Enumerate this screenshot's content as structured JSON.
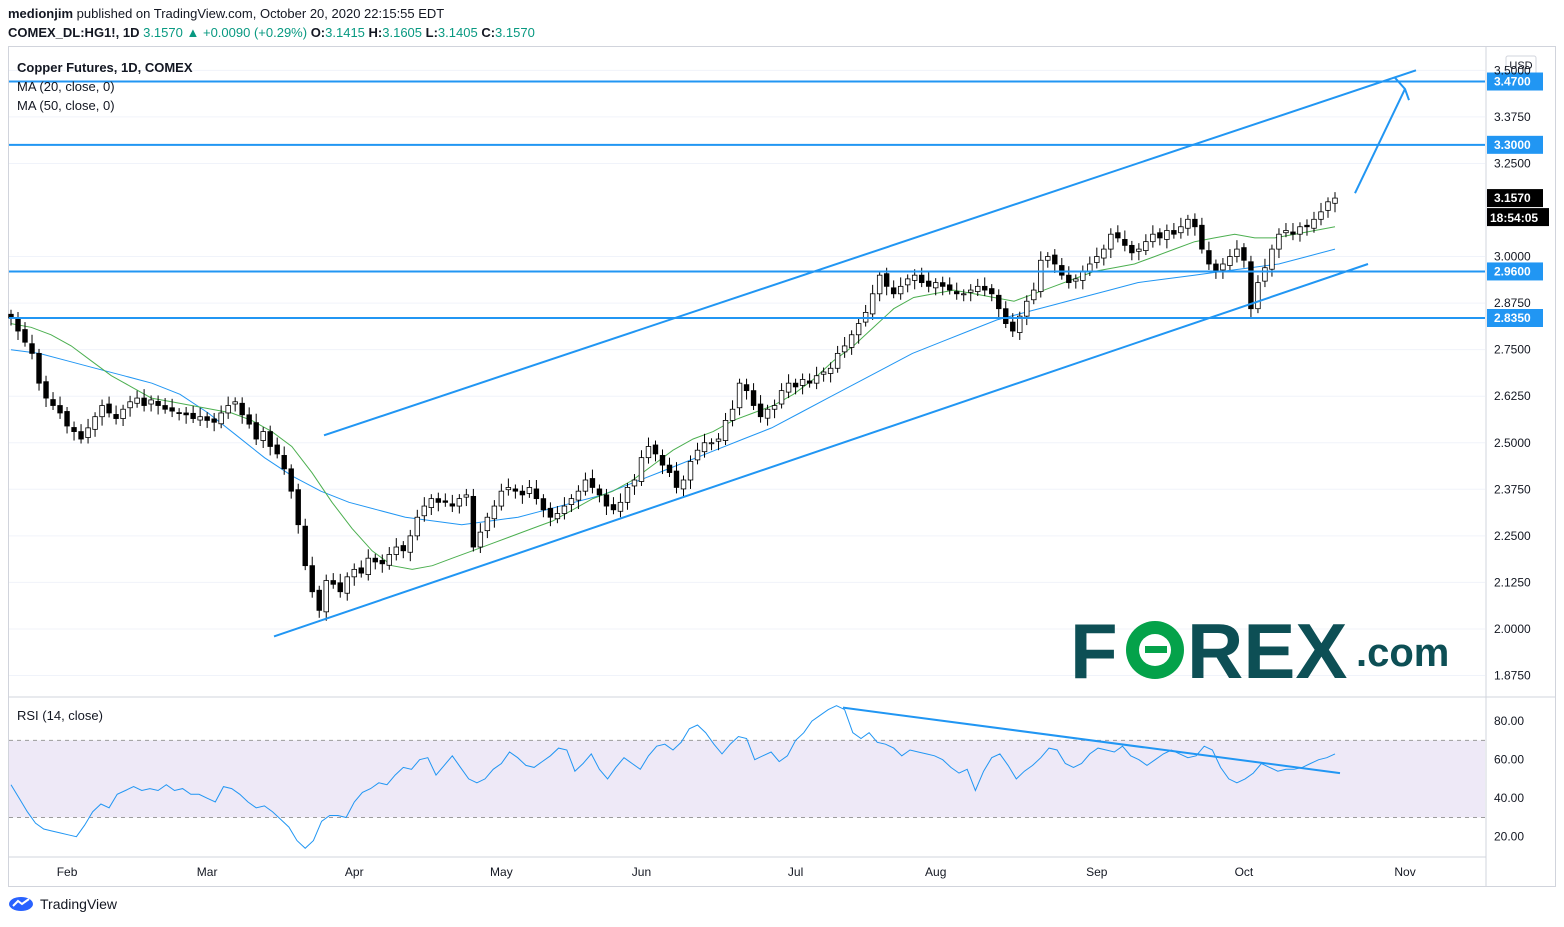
{
  "header": {
    "author": "medionjim",
    "published_text": "published on TradingView.com, October 20, 2020 22:15:55 EDT",
    "symbol": "COMEX_DL:HG1!, 1D",
    "last": "3.1570",
    "change_arrow": "▲",
    "change": "+0.0090 (+0.29%)",
    "o_label": "O:",
    "o": "3.1415",
    "h_label": "H:",
    "h": "3.1605",
    "l_label": "L:",
    "l": "3.1405",
    "c_label": "C:",
    "c": "3.1570"
  },
  "legend": {
    "title": "Copper Futures, 1D, COMEX",
    "ma20": "MA (20, close, 0)",
    "ma50": "MA (50, close, 0)",
    "rsi": "RSI (14, close)"
  },
  "currency": "USD",
  "price_ticks": [
    "3.5000",
    "3.3750",
    "3.2500",
    "3.0000",
    "2.8750",
    "2.7500",
    "2.6250",
    "2.5000",
    "2.3750",
    "2.2500",
    "2.1250",
    "2.0000",
    "1.8750"
  ],
  "level_labels": [
    "3.4700",
    "3.3000",
    "2.9600",
    "2.8350"
  ],
  "current_price_label": "3.1570",
  "countdown": "18:54:05",
  "rsi_ticks": [
    "80.00",
    "60.00",
    "40.00",
    "20.00"
  ],
  "x_labels": [
    "Feb",
    "Mar",
    "Apr",
    "May",
    "Jun",
    "Jul",
    "Aug",
    "Sep",
    "Oct",
    "Nov"
  ],
  "watermark": {
    "text_a": "F",
    "text_b": "REX",
    "dot_com": ".com"
  },
  "footer": {
    "brand": "TradingView"
  },
  "colors": {
    "up": "#089981",
    "line": "#2196f3",
    "ma20": "#4caf50",
    "ma50": "#2196f3",
    "rsi_band": "#7e57c2",
    "forex_dark": "#0d4f55",
    "forex_green": "#04a24a"
  },
  "chart_data": [
    {
      "type": "line",
      "title": "Copper Futures, 1D, COMEX",
      "ylim": [
        1.82,
        3.56
      ],
      "xlabel": "",
      "ylabel": "",
      "horizontal_levels": [
        3.47,
        3.3,
        2.96,
        2.835
      ],
      "series_closes": [
        2.835,
        2.8,
        2.77,
        2.74,
        2.66,
        2.62,
        2.6,
        2.58,
        2.545,
        2.53,
        2.51,
        2.54,
        2.57,
        2.6,
        2.58,
        2.565,
        2.59,
        2.61,
        2.62,
        2.6,
        2.615,
        2.6,
        2.59,
        2.585,
        2.58,
        2.575,
        2.565,
        2.57,
        2.56,
        2.555,
        2.58,
        2.6,
        2.61,
        2.575,
        2.55,
        2.51,
        2.53,
        2.49,
        2.47,
        2.43,
        2.37,
        2.28,
        2.17,
        2.1,
        2.05,
        2.13,
        2.12,
        2.1,
        2.14,
        2.16,
        2.15,
        2.19,
        2.18,
        2.175,
        2.2,
        2.22,
        2.21,
        2.25,
        2.3,
        2.33,
        2.35,
        2.34,
        2.34,
        2.33,
        2.35,
        2.36,
        2.22,
        2.26,
        2.3,
        2.33,
        2.37,
        2.38,
        2.37,
        2.36,
        2.38,
        2.35,
        2.32,
        2.3,
        2.31,
        2.33,
        2.35,
        2.37,
        2.4,
        2.38,
        2.36,
        2.33,
        2.32,
        2.34,
        2.38,
        2.4,
        2.46,
        2.49,
        2.47,
        2.44,
        2.42,
        2.38,
        2.4,
        2.45,
        2.48,
        2.5,
        2.5,
        2.51,
        2.56,
        2.59,
        2.66,
        2.64,
        2.6,
        2.57,
        2.59,
        2.6,
        2.64,
        2.66,
        2.65,
        2.67,
        2.66,
        2.68,
        2.69,
        2.7,
        2.74,
        2.76,
        2.79,
        2.82,
        2.85,
        2.9,
        2.95,
        2.92,
        2.9,
        2.92,
        2.94,
        2.95,
        2.93,
        2.92,
        2.93,
        2.92,
        2.91,
        2.9,
        2.9,
        2.91,
        2.92,
        2.91,
        2.9,
        2.86,
        2.82,
        2.8,
        2.84,
        2.88,
        2.91,
        2.99,
        3.0,
        2.98,
        2.95,
        2.93,
        2.94,
        2.96,
        2.98,
        3.0,
        3.02,
        3.06,
        3.05,
        3.03,
        3.01,
        3.02,
        3.04,
        3.06,
        3.05,
        3.07,
        3.06,
        3.08,
        3.1,
        3.08,
        3.02,
        2.98,
        2.96,
        2.98,
        3.0,
        3.02,
        2.99,
        2.86,
        2.93,
        2.97,
        3.02,
        3.06,
        3.07,
        3.06,
        3.08,
        3.08,
        3.1,
        3.12,
        3.147,
        3.157
      ],
      "ma20": [
        2.82,
        2.81,
        2.79,
        2.76,
        2.72,
        2.68,
        2.65,
        2.62,
        2.61,
        2.6,
        2.59,
        2.58,
        2.56,
        2.53,
        2.49,
        2.42,
        2.34,
        2.27,
        2.21,
        2.17,
        2.16,
        2.17,
        2.19,
        2.21,
        2.23,
        2.25,
        2.27,
        2.29,
        2.32,
        2.35,
        2.37,
        2.4,
        2.44,
        2.48,
        2.51,
        2.53,
        2.56,
        2.58,
        2.6,
        2.63,
        2.67,
        2.72,
        2.76,
        2.81,
        2.86,
        2.89,
        2.9,
        2.91,
        2.9,
        2.89,
        2.88,
        2.9,
        2.92,
        2.94,
        2.96,
        2.97,
        2.98,
        3.0,
        3.02,
        3.04,
        3.05,
        3.06,
        3.05,
        3.05,
        3.06,
        3.07,
        3.08
      ],
      "ma50": [
        2.75,
        2.74,
        2.72,
        2.7,
        2.68,
        2.66,
        2.63,
        2.58,
        2.52,
        2.46,
        2.41,
        2.37,
        2.34,
        2.32,
        2.3,
        2.29,
        2.28,
        2.29,
        2.3,
        2.32,
        2.34,
        2.36,
        2.39,
        2.42,
        2.45,
        2.48,
        2.51,
        2.54,
        2.58,
        2.62,
        2.66,
        2.7,
        2.74,
        2.77,
        2.8,
        2.83,
        2.85,
        2.87,
        2.89,
        2.91,
        2.93,
        2.94,
        2.95,
        2.96,
        2.97,
        2.98,
        3.0,
        3.02
      ]
    },
    {
      "type": "line",
      "title": "RSI (14, close)",
      "ylim": [
        10,
        92
      ],
      "band": [
        30,
        70
      ],
      "values": [
        47,
        40,
        33,
        27,
        24,
        23,
        22,
        21,
        20,
        26,
        33,
        37,
        35,
        42,
        44,
        46,
        44,
        45,
        44,
        47,
        44,
        45,
        42,
        42,
        40,
        38,
        46,
        45,
        42,
        38,
        35,
        36,
        33,
        29,
        25,
        18,
        14,
        18,
        28,
        31,
        31,
        30,
        38,
        43,
        45,
        48,
        47,
        52,
        56,
        55,
        60,
        61,
        52,
        57,
        62,
        56,
        50,
        48,
        50,
        55,
        58,
        64,
        61,
        57,
        56,
        59,
        62,
        66,
        65,
        54,
        58,
        63,
        55,
        50,
        56,
        61,
        58,
        55,
        62,
        67,
        68,
        65,
        69,
        76,
        78,
        74,
        68,
        63,
        68,
        72,
        71,
        60,
        62,
        64,
        59,
        62,
        70,
        74,
        80,
        83,
        86,
        88,
        86,
        74,
        71,
        74,
        69,
        68,
        66,
        62,
        65,
        64,
        63,
        62,
        60,
        56,
        53,
        55,
        44,
        54,
        61,
        63,
        57,
        50,
        54,
        57,
        61,
        66,
        65,
        58,
        56,
        58,
        63,
        66,
        65,
        64,
        67,
        62,
        60,
        57,
        60,
        63,
        65,
        63,
        61,
        62,
        67,
        65,
        56,
        50,
        48,
        50,
        53,
        58,
        56,
        54,
        55,
        55,
        56,
        58,
        60,
        61,
        63
      ]
    }
  ]
}
